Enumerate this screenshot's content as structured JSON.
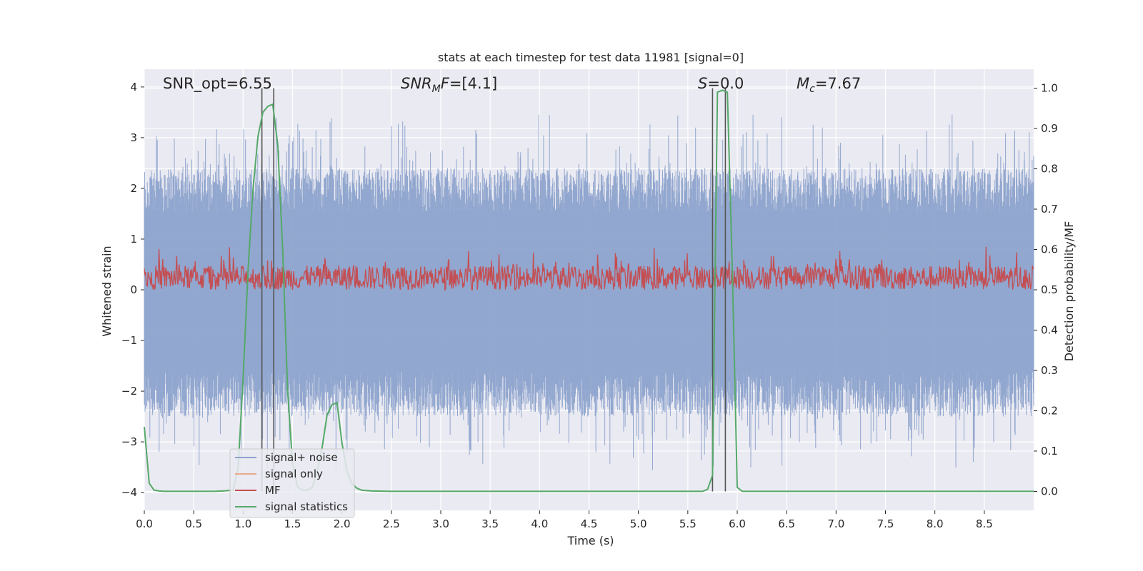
{
  "chart_data": {
    "type": "line",
    "title": "stats at each timestep for test data 11981 [signal=0]",
    "xlabel": "Time (s)",
    "ylabel_left": "Whitened strain",
    "ylabel_right": "Detection probability/MF",
    "xlim": [
      0,
      9.0
    ],
    "ylim_left": [
      -4.35,
      4.35
    ],
    "ylim_right": [
      -0.047,
      1.047
    ],
    "xticks": [
      0.0,
      0.5,
      1.0,
      1.5,
      2.0,
      2.5,
      3.0,
      3.5,
      4.0,
      4.5,
      5.0,
      5.5,
      6.0,
      6.5,
      7.0,
      7.5,
      8.0,
      8.5
    ],
    "xtick_labels": [
      "0.0",
      "0.5",
      "1.0",
      "1.5",
      "2.0",
      "2.5",
      "3.0",
      "3.5",
      "4.0",
      "4.5",
      "5.0",
      "5.5",
      "6.0",
      "6.5",
      "7.0",
      "7.5",
      "8.0",
      "8.5"
    ],
    "yticks_left": [
      -4,
      -3,
      -2,
      -1,
      0,
      1,
      2,
      3,
      4
    ],
    "ytick_labels_left": [
      "−4",
      "−3",
      "−2",
      "−1",
      "0",
      "1",
      "2",
      "3",
      "4"
    ],
    "yticks_right": [
      0.0,
      0.1,
      0.2,
      0.3,
      0.4,
      0.5,
      0.6,
      0.7,
      0.8,
      0.9,
      1.0
    ],
    "ytick_labels_right": [
      "0.0",
      "0.1",
      "0.2",
      "0.3",
      "0.4",
      "0.5",
      "0.6",
      "0.7",
      "0.8",
      "0.9",
      "1.0"
    ],
    "grid": true,
    "legend_position": "lower-left",
    "annotations": {
      "snr_opt": "SNR_opt=6.55",
      "snr_mf_value": "=[4.1]",
      "s_value": "=0.0",
      "mc_value": "=7.67"
    },
    "vertical_lines_x": [
      1.19,
      1.31,
      5.75,
      5.88
    ],
    "series": [
      {
        "name": "signal+ noise",
        "color": "#8da3cc",
        "axis": "left",
        "style": "dense-noise",
        "envelope_upper_max": 3.45,
        "envelope_lower_min": -3.55
      },
      {
        "name": "signal only",
        "color": "#e8a98a",
        "axis": "left"
      },
      {
        "name": "MF",
        "color": "#c44e52",
        "axis": "right",
        "style": "dense-noise",
        "center": 0.53,
        "range": [
          0.5,
          0.62
        ]
      },
      {
        "name": "signal statistics",
        "color": "#55a868",
        "axis": "right",
        "x": [
          0.0,
          0.05,
          0.1,
          0.15,
          0.2,
          0.3,
          0.5,
          0.7,
          0.8,
          0.9,
          0.95,
          1.0,
          1.05,
          1.1,
          1.15,
          1.2,
          1.25,
          1.3,
          1.35,
          1.4,
          1.45,
          1.5,
          1.55,
          1.6,
          1.65,
          1.7,
          1.75,
          1.8,
          1.85,
          1.9,
          1.95,
          2.0,
          2.05,
          2.1,
          2.15,
          2.2,
          2.3,
          2.5,
          3.0,
          4.0,
          5.0,
          5.5,
          5.65,
          5.7,
          5.75,
          5.8,
          5.85,
          5.9,
          5.95,
          6.0,
          6.05,
          6.5,
          7.0,
          8.0,
          9.0
        ],
        "y": [
          0.16,
          0.02,
          0.003,
          0.001,
          0.0,
          0.0,
          0.0,
          0.0,
          0.001,
          0.003,
          0.06,
          0.28,
          0.55,
          0.75,
          0.88,
          0.94,
          0.955,
          0.96,
          0.86,
          0.6,
          0.25,
          0.07,
          0.012,
          0.003,
          0.003,
          0.01,
          0.05,
          0.11,
          0.19,
          0.215,
          0.22,
          0.12,
          0.05,
          0.02,
          0.008,
          0.003,
          0.001,
          0.0,
          0.0,
          0.0,
          0.0,
          0.0,
          0.0,
          0.005,
          0.04,
          0.99,
          0.995,
          0.99,
          0.55,
          0.01,
          0.0,
          0.0,
          0.0,
          0.0,
          0.0
        ]
      }
    ]
  }
}
